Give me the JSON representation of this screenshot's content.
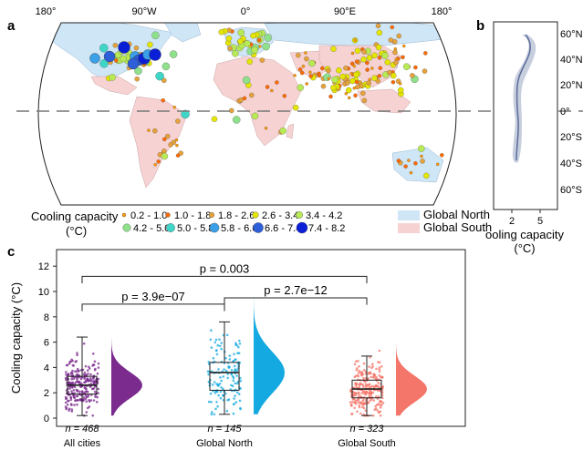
{
  "panels": {
    "a": "a",
    "b": "b",
    "c": "c"
  },
  "map": {
    "lon_labels": [
      "180°",
      "90°W",
      "0°",
      "90°E",
      "180°"
    ],
    "colors": {
      "ocean": "#ffffff",
      "land": "#dcdcdc",
      "north": "#cfe6f7",
      "south": "#f7d2d2"
    }
  },
  "legend": {
    "title_line1": "Cooling capacity",
    "title_line2": "(°C)",
    "bins": [
      {
        "label": "0.2 - 1.0",
        "color": "#ff9900"
      },
      {
        "label": "1.0 - 1.8",
        "color": "#ff6a00"
      },
      {
        "label": "1.8 - 2.6",
        "color": "#e6a23a"
      },
      {
        "label": "2.6 - 3.4",
        "color": "#e5e600"
      },
      {
        "label": "3.4 - 4.2",
        "color": "#b8ea55"
      },
      {
        "label": "4.2 - 5.0",
        "color": "#8fe08a"
      },
      {
        "label": "5.0 - 5.8",
        "color": "#3fd6c8"
      },
      {
        "label": "5.8 - 6.6",
        "color": "#3aa0e8"
      },
      {
        "label": "6.6 - 7.4",
        "color": "#2d5fd9"
      },
      {
        "label": "7.4 - 8.2",
        "color": "#0b1fd6"
      }
    ],
    "regions": [
      {
        "label": "Global North",
        "color": "#cfe6f7"
      },
      {
        "label": "Global South",
        "color": "#f7d2d2"
      }
    ]
  },
  "panel_b": {
    "lat_labels": [
      "60°N",
      "40°N",
      "20°N",
      "0°",
      "20°S",
      "40°S",
      "60°S"
    ],
    "x_ticks": [
      "2",
      "5"
    ],
    "xlabel_line1": "ooling capacity",
    "xlabel_line2": "(°C)"
  },
  "chart_data": {
    "type": "box",
    "categories": [
      "All cities",
      "Global North",
      "Global South"
    ],
    "colors": [
      "#7b2a8e",
      "#14a9e0",
      "#f4766a"
    ],
    "ylabel": "Cooling capacity (°C)",
    "ylim": [
      0,
      12
    ],
    "y_ticks": [
      "0",
      "2",
      "4",
      "6",
      "8",
      "10",
      "12"
    ],
    "n": [
      "n = 468",
      "n = 145",
      "n = 323"
    ],
    "box_stats": [
      {
        "min": 0.2,
        "q1": 1.9,
        "median": 2.6,
        "q3": 3.3,
        "max": 6.4
      },
      {
        "min": 0.3,
        "q1": 2.2,
        "median": 3.6,
        "q3": 4.4,
        "max": 7.6
      },
      {
        "min": 0.2,
        "q1": 1.6,
        "median": 2.3,
        "q3": 3.0,
        "max": 4.9
      }
    ],
    "comparisons": [
      {
        "from": "All cities",
        "to": "Global South",
        "label": "p = 0.003"
      },
      {
        "from": "All cities",
        "to": "Global North",
        "label": "p = 3.9e−07"
      },
      {
        "from": "Global North",
        "to": "Global South",
        "label": "p = 2.7e−12"
      }
    ]
  }
}
